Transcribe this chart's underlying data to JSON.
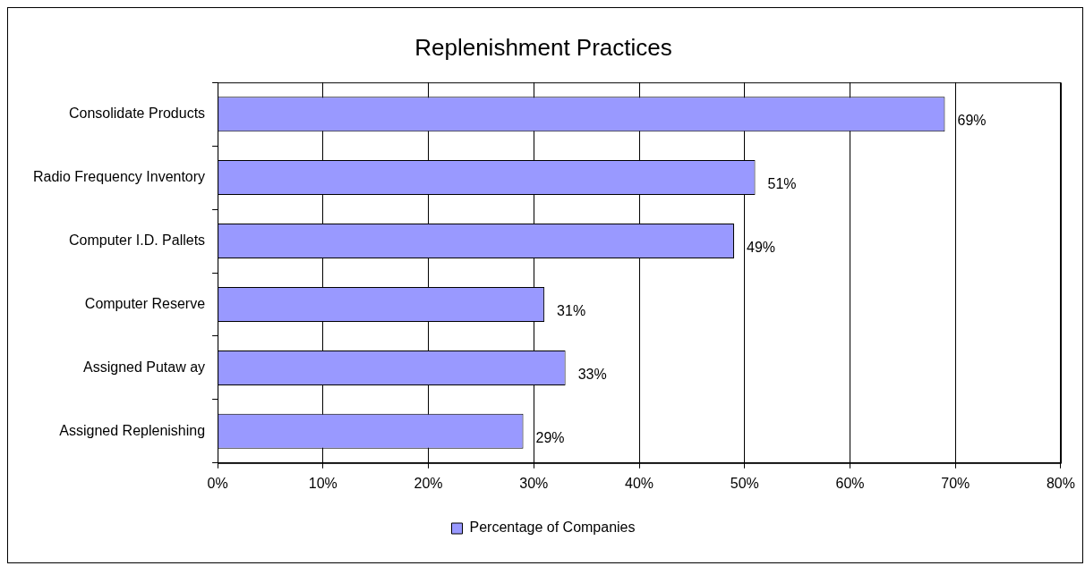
{
  "chart_data": {
    "type": "bar",
    "orientation": "horizontal",
    "title": "Replenishment Practices",
    "categories": [
      "Consolidate Products",
      "Radio Frequency Inventory",
      "Computer I.D. Pallets",
      "Computer Reserve",
      "Assigned Putaw ay",
      "Assigned Replenishing"
    ],
    "series": [
      {
        "name": "Percentage of Companies",
        "color": "#9999ff",
        "values": [
          69,
          51,
          49,
          31,
          33,
          29
        ],
        "value_labels": [
          "69%",
          "51%",
          "49%",
          "31%",
          "33%",
          "29%"
        ]
      }
    ],
    "xlim": [
      0,
      80
    ],
    "xticks": [
      {
        "value": 0,
        "label": "0%"
      },
      {
        "value": 10,
        "label": "10%"
      },
      {
        "value": 20,
        "label": "20%"
      },
      {
        "value": 30,
        "label": "30%"
      },
      {
        "value": 40,
        "label": "40%"
      },
      {
        "value": 50,
        "label": "50%"
      },
      {
        "value": 60,
        "label": "60%"
      },
      {
        "value": 70,
        "label": "70%"
      },
      {
        "value": 80,
        "label": "80%"
      }
    ],
    "grid": "x",
    "legend": "bottom"
  }
}
